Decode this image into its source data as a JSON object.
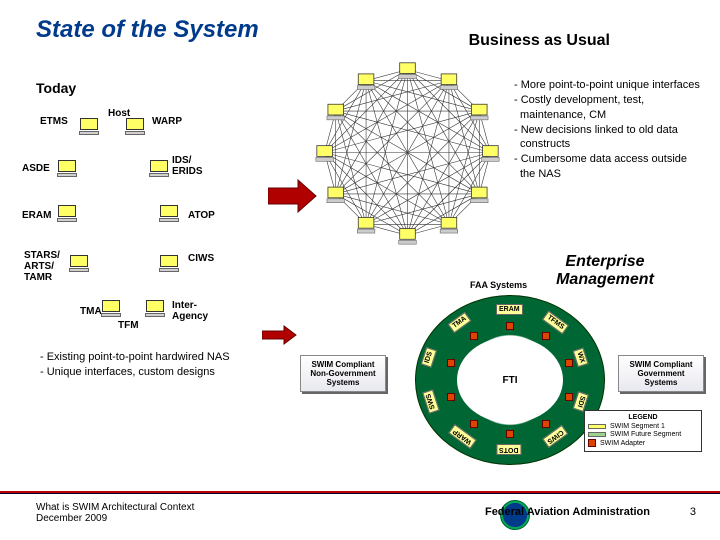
{
  "title": "State of the System",
  "subtitle_right": "Business as Usual",
  "today_label": "Today",
  "system_labels": {
    "etms": "ETMS",
    "host": "Host",
    "warp": "WARP",
    "asde": "ASDE",
    "ids": "IDS/\nERIDS",
    "eram": "ERAM",
    "atop": "ATOP",
    "stars": "STARS/\nARTS/\nTAMR",
    "ciws": "CIWS",
    "tma": "TMA",
    "tfm": "TFM",
    "inter": "Inter-\nAgency"
  },
  "right_bullets": [
    "- More point-to-point unique interfaces",
    "- Costly development, test, maintenance, CM",
    "- New decisions linked to old data constructs",
    "- Cumbersome data access outside the NAS"
  ],
  "em_title": "Enterprise Management",
  "left_bullets": [
    "- Existing point-to-point hardwired NAS",
    "- Unique interfaces, custom designs"
  ],
  "faa_systems_label": "FAA Systems",
  "ring_center": "FTI",
  "ring_labels": [
    "ERAM",
    "TFMS",
    "WX",
    "SDI",
    "CIWS",
    "DOTS",
    "WARP",
    "SWS",
    "IDS",
    "TMA"
  ],
  "swim_left": "SWIM Compliant Non-Government Systems",
  "swim_right": "SWIM Compliant Government Systems",
  "legend": {
    "title": "LEGEND",
    "seg1": "SWIM Segment 1",
    "seg2": "SWIM Future Segment",
    "adapter": "SWIM Adapter"
  },
  "footer": {
    "line1": "What is SWIM Architectural Context",
    "line2": "December 2009",
    "agency": "Federal Aviation Administration",
    "slidenum": "3"
  },
  "colors": {
    "title": "#003a8a",
    "arrow": "#b00000",
    "ring": "#006633",
    "box_yellow": "#ffff66",
    "adapter": "#d40"
  }
}
